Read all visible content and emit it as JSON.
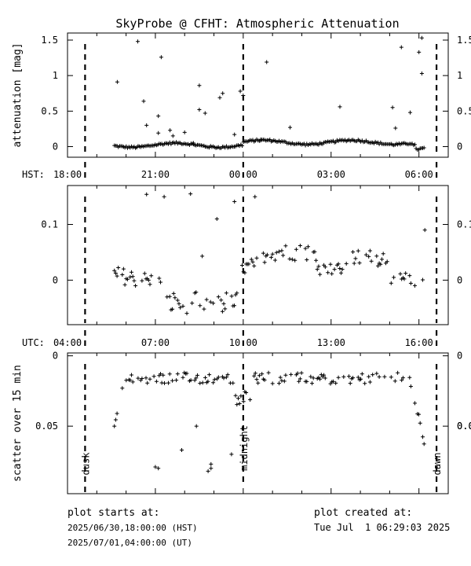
{
  "chart_data": {
    "type": "scatter",
    "title": "SkyProbe @ CFHT: Atmospheric Attenuation",
    "time_axes": {
      "hst_label": "HST:",
      "hst_ticks": [
        "18:00",
        "21:00",
        "00:00",
        "03:00",
        "06:00"
      ],
      "utc_label": "UTC:",
      "utc_ticks": [
        "04:00",
        "07:00",
        "10:00",
        "13:00",
        "16:00"
      ],
      "xlim_hours_hst": [
        18.0,
        31.0
      ]
    },
    "markers": [
      {
        "label": "dusk",
        "hst": 18.6
      },
      {
        "label": "midnight",
        "hst": 24.0
      },
      {
        "label": "dawn",
        "hst": 30.6
      }
    ],
    "panels": [
      {
        "name": "attenuation",
        "ylabel": "attenuation [mag]",
        "ylim": [
          1.6,
          -0.15
        ],
        "yticks": [
          "0",
          "0.5",
          "1",
          "1.5"
        ],
        "yticks_values": [
          0,
          0.5,
          1,
          1.5
        ],
        "outliers": [
          [
            19.7,
            0.91
          ],
          [
            20.4,
            1.48
          ],
          [
            20.6,
            0.64
          ],
          [
            20.7,
            0.3
          ],
          [
            21.1,
            0.43
          ],
          [
            21.1,
            0.19
          ],
          [
            21.2,
            1.26
          ],
          [
            21.5,
            0.23
          ],
          [
            21.6,
            0.15
          ],
          [
            22.0,
            0.2
          ],
          [
            22.3,
            0.05
          ],
          [
            22.5,
            0.52
          ],
          [
            22.5,
            0.86
          ],
          [
            22.7,
            0.47
          ],
          [
            23.2,
            0.69
          ],
          [
            23.3,
            0.75
          ],
          [
            23.7,
            0.17
          ],
          [
            23.9,
            0.78
          ],
          [
            24.0,
            0.72
          ],
          [
            24.6,
            0.1
          ],
          [
            24.8,
            1.19
          ],
          [
            25.6,
            0.27
          ],
          [
            27.3,
            0.56
          ],
          [
            29.1,
            0.55
          ],
          [
            29.2,
            0.26
          ],
          [
            29.4,
            1.4
          ],
          [
            29.7,
            0.48
          ],
          [
            30.0,
            1.33
          ],
          [
            30.1,
            1.03
          ],
          [
            30.1,
            1.53
          ]
        ]
      },
      {
        "name": "extinction-trend",
        "ylim": [
          0.17,
          -0.08
        ],
        "yticks": [
          "0",
          "0.1"
        ],
        "yticks_values": [
          0,
          0.1
        ],
        "outliers": [
          [
            22.6,
            0.043
          ],
          [
            23.1,
            0.11
          ],
          [
            23.7,
            0.141
          ],
          [
            22.2,
            0.155
          ],
          [
            21.3,
            0.15
          ],
          [
            20.7,
            0.154
          ],
          [
            24.4,
            0.15
          ],
          [
            30.2,
            0.09
          ]
        ]
      },
      {
        "name": "scatter",
        "ylabel": "scatter over 15 min",
        "ylim": [
          -0.002,
          0.098
        ],
        "yticks": [
          "0",
          "0.05"
        ],
        "yticks_values": [
          0,
          0.05
        ],
        "right_ytick_top": "0.0",
        "outliers": [
          [
            21.0,
            0.079
          ],
          [
            21.1,
            0.08
          ],
          [
            21.9,
            0.067
          ],
          [
            22.4,
            0.05
          ],
          [
            22.8,
            0.082
          ],
          [
            22.9,
            0.077
          ],
          [
            22.9,
            0.08
          ],
          [
            23.6,
            0.07
          ]
        ]
      }
    ]
  },
  "footer": {
    "start_label": "plot starts at:",
    "start_hst": "2025/06/30,18:00:00 (HST)",
    "start_ut": "2025/07/01,04:00:00 (UT)",
    "created_label": "plot created at:",
    "created_time": "Tue Jul  1 06:29:03 2025"
  }
}
